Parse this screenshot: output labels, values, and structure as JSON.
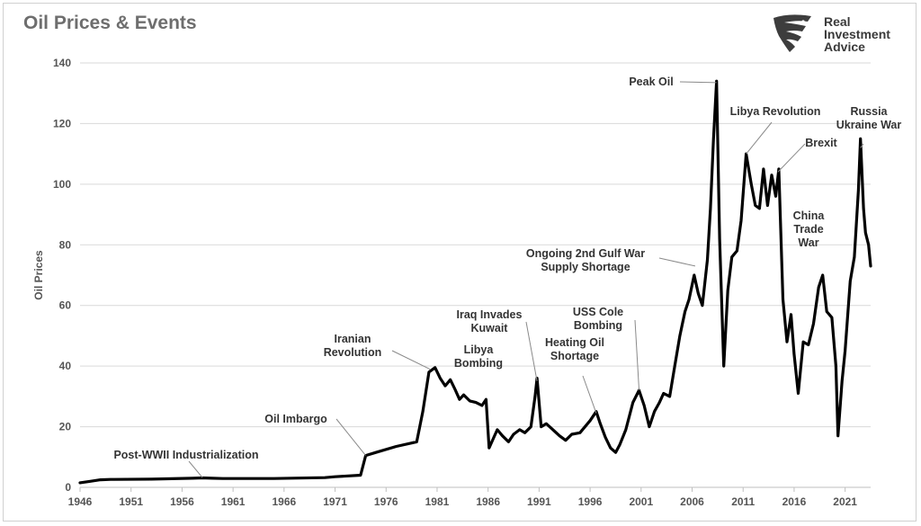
{
  "chart_data": {
    "type": "line",
    "title": "Oil Prices & Events",
    "ylabel": "Oil Prices",
    "xlabel": "",
    "ylim": [
      0,
      140
    ],
    "xlim": [
      1946,
      2023.5
    ],
    "yticks": [
      0,
      20,
      40,
      60,
      80,
      100,
      120,
      140
    ],
    "xticks": [
      "1946",
      "1951",
      "1956",
      "1961",
      "1966",
      "1971",
      "1976",
      "1981",
      "1986",
      "1991",
      "1996",
      "2001",
      "2006",
      "2011",
      "2016",
      "2021"
    ],
    "grid": "horizontal",
    "line_color": "#000000",
    "series": [
      {
        "x": [
          1946,
          1947,
          1948,
          1949,
          1953,
          1957,
          1958,
          1959,
          1960,
          1965,
          1970,
          1971,
          1973.5,
          1974,
          1975,
          1977,
          1979,
          1979.6,
          1980.2,
          1980.8,
          1981.3,
          1981.8,
          1982.3,
          1982.8,
          1983.2,
          1983.6,
          1984.2,
          1984.8,
          1985.4,
          1985.8,
          1986.1,
          1986.5,
          1986.9,
          1987.4,
          1988,
          1988.5,
          1989.1,
          1989.6,
          1990.2,
          1990.6,
          1990.8,
          1991.2,
          1991.7,
          1992.2,
          1993,
          1993.6,
          1994.2,
          1995,
          1996,
          1996.6,
          1997,
          1997.5,
          1998,
          1998.5,
          1998.9,
          1999.5,
          2000.2,
          2000.8,
          2001.3,
          2001.8,
          2002.3,
          2002.8,
          2003.2,
          2003.8,
          2004.3,
          2004.8,
          2005.3,
          2005.7,
          2006.2,
          2006.6,
          2007,
          2007.5,
          2007.8,
          2008.1,
          2008.4,
          2008.7,
          2009.1,
          2009.5,
          2009.9,
          2010.4,
          2010.8,
          2011.3,
          2011.8,
          2012.2,
          2012.6,
          2013.0,
          2013.4,
          2013.8,
          2014.2,
          2014.5,
          2014.9,
          2015.3,
          2015.7,
          2016.0,
          2016.4,
          2016.9,
          2017.4,
          2017.9,
          2018.4,
          2018.8,
          2019.2,
          2019.7,
          2020.1,
          2020.3,
          2020.7,
          2021.0,
          2021.5,
          2021.9,
          2022.3,
          2022.5,
          2022.8,
          2023.0,
          2023.3,
          2023.5
        ],
        "y": [
          1.5,
          2,
          2.5,
          2.6,
          2.7,
          3.0,
          3.1,
          3.0,
          2.9,
          2.9,
          3.2,
          3.5,
          4.0,
          10.5,
          11.5,
          13.5,
          15,
          25,
          38,
          39.5,
          36,
          33.5,
          35.5,
          32,
          29,
          30.5,
          28.5,
          28,
          27,
          29,
          13,
          16,
          19,
          17,
          15,
          17.5,
          19,
          18,
          20,
          30,
          36,
          20,
          21,
          19.5,
          17,
          15.5,
          17.5,
          18,
          22,
          25,
          21,
          16.5,
          13,
          11.5,
          14,
          19,
          28,
          32,
          27,
          20,
          25,
          28,
          31,
          30,
          40,
          50,
          58,
          62,
          70,
          64,
          60,
          75,
          92,
          115,
          134,
          82,
          40,
          65,
          76,
          78,
          88,
          110,
          100,
          93,
          92,
          105,
          93,
          103,
          96,
          105,
          62,
          48,
          57,
          44,
          31,
          48,
          47,
          54,
          66,
          70,
          58,
          56,
          40,
          17,
          35,
          45,
          68,
          76,
          98,
          115,
          92,
          84,
          80,
          73
        ]
      }
    ],
    "annotations": [
      {
        "lines": [
          "Post-WWII Industrialization"
        ],
        "x": 1958,
        "y": 3.2
      },
      {
        "lines": [
          "Oil Imbargo"
        ],
        "x": 1974,
        "y": 10.5
      },
      {
        "lines": [
          "Iranian",
          "Revolution"
        ],
        "x": 1980.3,
        "y": 39
      },
      {
        "lines": [
          "Iraq Invades",
          "Kuwait"
        ],
        "x": 1990.8,
        "y": 35
      },
      {
        "lines": [
          "Libya",
          "Bombing"
        ],
        "x": 1986,
        "y": 31
      },
      {
        "lines": [
          "Heating Oil",
          "Shortage"
        ],
        "x": 1996.6,
        "y": 24.5
      },
      {
        "lines": [
          "USS Cole",
          "Bombing"
        ],
        "x": 2000.8,
        "y": 32
      },
      {
        "lines": [
          "Ongoing 2nd Gulf War",
          "Supply Shortage"
        ],
        "x": 2006.3,
        "y": 73
      },
      {
        "lines": [
          "Peak Oil"
        ],
        "x": 2008.4,
        "y": 133.5
      },
      {
        "lines": [
          "Libya Revolution"
        ],
        "x": 2011.3,
        "y": 110
      },
      {
        "lines": [
          "Brexit"
        ],
        "x": 2014.4,
        "y": 104
      },
      {
        "lines": [
          "China",
          "Trade",
          "War"
        ],
        "x": 2018.6,
        "y": 70.5
      },
      {
        "lines": [
          "Russia",
          "Ukraine War"
        ],
        "x": 2022.5,
        "y": 112
      }
    ]
  },
  "logo": {
    "line1": "Real",
    "line2": "Investment",
    "line3": "Advice"
  }
}
